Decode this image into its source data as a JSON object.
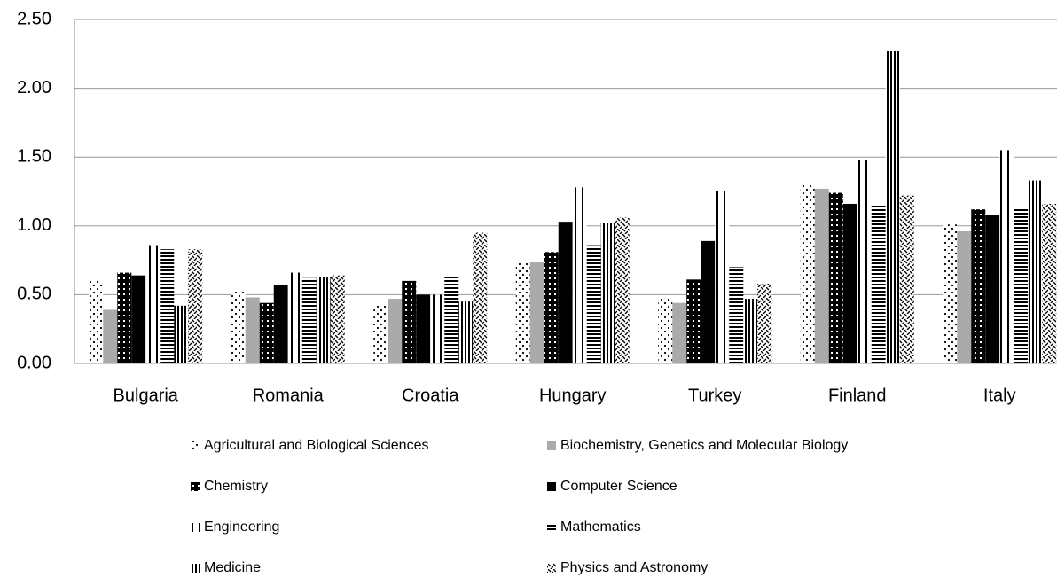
{
  "chart_data": {
    "type": "bar",
    "categories": [
      "Bulgaria",
      "Romania",
      "Croatia",
      "Hungary",
      "Turkey",
      "Finland",
      "Italy"
    ],
    "ylim": [
      0,
      2.5
    ],
    "yticks": [
      {
        "value": 0,
        "label": "0.00"
      },
      {
        "value": 0.5,
        "label": "0.50"
      },
      {
        "value": 1,
        "label": "1.00"
      },
      {
        "value": 1.5,
        "label": "1.50"
      },
      {
        "value": 2,
        "label": "2.00"
      },
      {
        "value": 2.5,
        "label": "2.50"
      }
    ],
    "grid": true,
    "legend": "bottom",
    "series": [
      {
        "name": "Agricultural and Biological Sciences",
        "color": "#000000",
        "pattern": "dots",
        "values": [
          0.61,
          0.53,
          0.42,
          0.73,
          0.48,
          1.3,
          1.01
        ]
      },
      {
        "name": "Biochemistry, Genetics and Molecular Biology",
        "color": "#aaaaaa",
        "pattern": "solid",
        "values": [
          0.39,
          0.48,
          0.47,
          0.74,
          0.44,
          1.27,
          0.96
        ]
      },
      {
        "name": "Chemistry",
        "color": "#000000",
        "pattern": "checker",
        "values": [
          0.66,
          0.44,
          0.6,
          0.81,
          0.61,
          1.24,
          1.12
        ]
      },
      {
        "name": "Computer Science",
        "color": "#000000",
        "pattern": "solid",
        "values": [
          0.64,
          0.57,
          0.5,
          1.03,
          0.89,
          1.16,
          1.08
        ]
      },
      {
        "name": "Engineering",
        "color": "#000000",
        "pattern": "vlines-wide",
        "values": [
          0.86,
          0.66,
          0.5,
          1.28,
          1.25,
          1.48,
          1.55
        ]
      },
      {
        "name": "Mathematics",
        "color": "#000000",
        "pattern": "hlines",
        "values": [
          0.83,
          0.62,
          0.64,
          0.86,
          0.7,
          1.15,
          1.13
        ]
      },
      {
        "name": "Medicine",
        "color": "#000000",
        "pattern": "vlines",
        "values": [
          0.42,
          0.63,
          0.45,
          1.02,
          0.47,
          2.27,
          1.33
        ]
      },
      {
        "name": "Physics and Astronomy",
        "color": "#000000",
        "pattern": "diagonal",
        "values": [
          0.83,
          0.64,
          0.95,
          1.06,
          0.58,
          1.22,
          1.16
        ]
      }
    ]
  }
}
